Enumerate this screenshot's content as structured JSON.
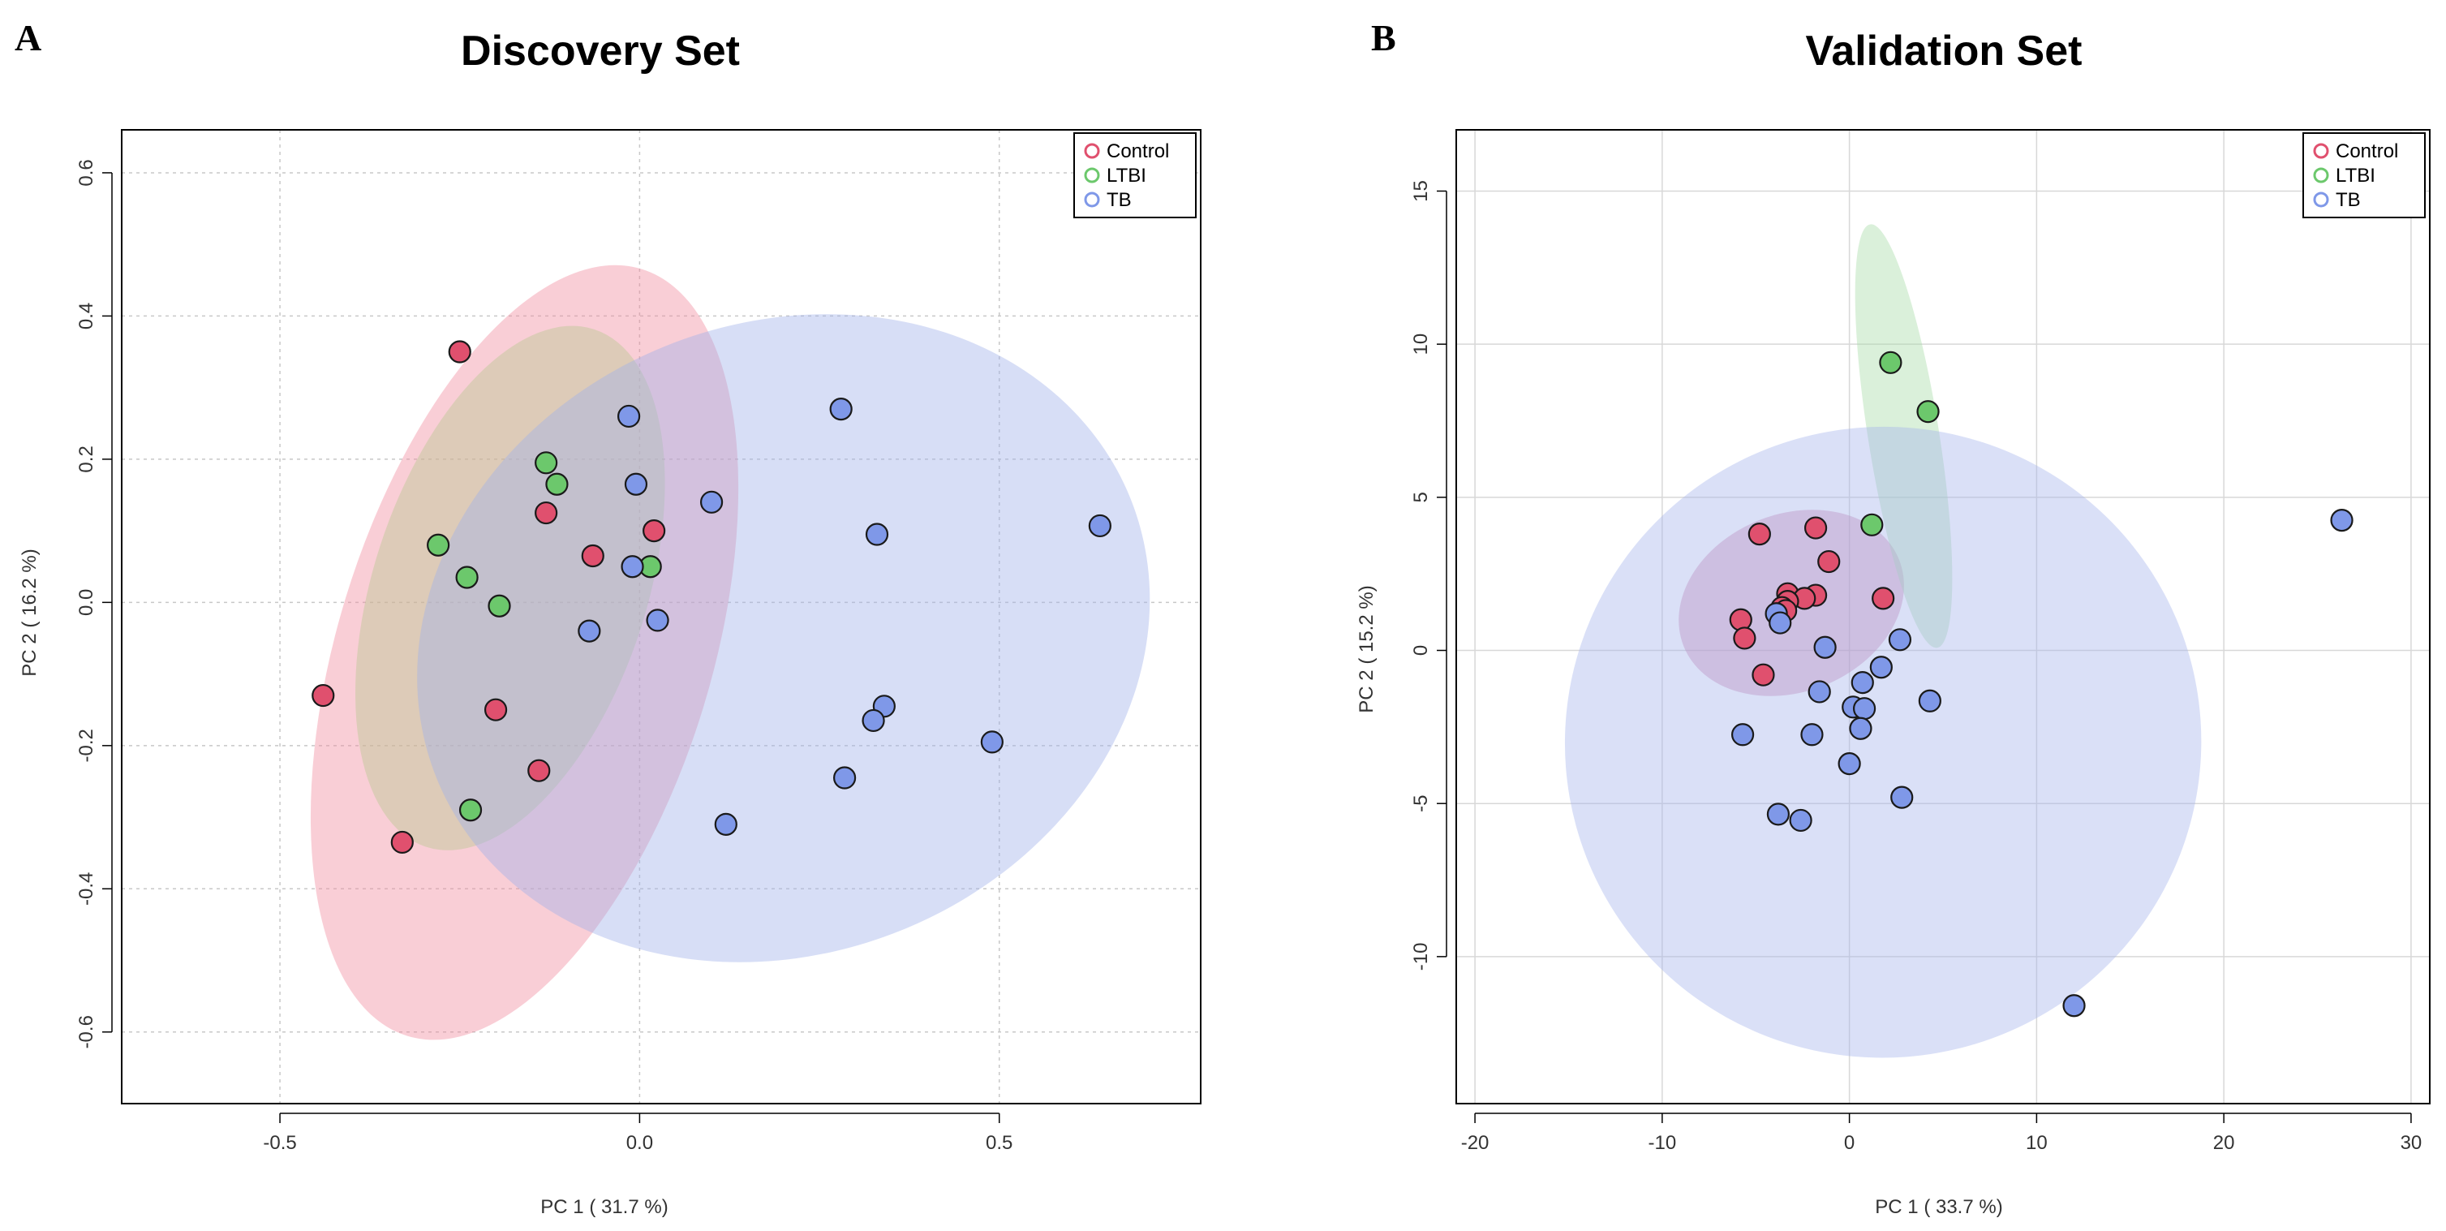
{
  "chart_data": [
    {
      "panel": "A",
      "type": "scatter",
      "title": "Discovery Set",
      "xlabel": "PC 1 ( 31.7 %)",
      "ylabel": "PC 2 ( 16.2 %)",
      "xlim": [
        -0.72,
        0.78
      ],
      "ylim": [
        -0.7,
        0.66
      ],
      "xticks": [
        -0.5,
        0.0,
        0.5
      ],
      "xtick_labels": [
        "-0.5",
        "0.0",
        "0.5"
      ],
      "yticks": [
        -0.6,
        -0.4,
        -0.2,
        0.0,
        0.2,
        0.4,
        0.6
      ],
      "ytick_labels": [
        "-0.6",
        "-0.4",
        "-0.2",
        "0.0",
        "0.2",
        "0.4",
        "0.6"
      ],
      "grid": true,
      "grid_style": "dotted",
      "legend_position": "top-right",
      "series": [
        {
          "name": "Control",
          "color": "#e0506e",
          "ellipse": {
            "cx": -0.16,
            "cy": -0.07,
            "rx": 0.26,
            "ry": 0.56,
            "angle": -17,
            "color": "#f08a9e"
          },
          "points": [
            [
              -0.25,
              0.35
            ],
            [
              -0.13,
              0.125
            ],
            [
              0.02,
              0.1
            ],
            [
              -0.065,
              0.065
            ],
            [
              -0.44,
              -0.13
            ],
            [
              -0.2,
              -0.15
            ],
            [
              -0.14,
              -0.235
            ],
            [
              -0.33,
              -0.335
            ]
          ]
        },
        {
          "name": "LTBI",
          "color": "#6cc86c",
          "ellipse": {
            "cx": -0.18,
            "cy": 0.02,
            "rx": 0.19,
            "ry": 0.38,
            "angle": -18,
            "color": "#b8c890"
          },
          "points": [
            [
              -0.13,
              0.195
            ],
            [
              -0.115,
              0.165
            ],
            [
              -0.28,
              0.08
            ],
            [
              -0.24,
              0.035
            ],
            [
              -0.195,
              -0.005
            ],
            [
              0.015,
              0.05
            ],
            [
              -0.235,
              -0.29
            ]
          ]
        },
        {
          "name": "TB",
          "color": "#7f98e8",
          "ellipse": {
            "cx": 0.2,
            "cy": -0.05,
            "rx": 0.52,
            "ry": 0.44,
            "angle": 22,
            "color": "#9fb0ea"
          },
          "points": [
            [
              -0.015,
              0.26
            ],
            [
              0.28,
              0.27
            ],
            [
              -0.005,
              0.165
            ],
            [
              0.1,
              0.14
            ],
            [
              0.64,
              0.107
            ],
            [
              0.33,
              0.095
            ],
            [
              -0.01,
              0.05
            ],
            [
              0.025,
              -0.025
            ],
            [
              -0.07,
              -0.04
            ],
            [
              0.34,
              -0.145
            ],
            [
              0.325,
              -0.165
            ],
            [
              0.49,
              -0.195
            ],
            [
              0.285,
              -0.245
            ],
            [
              0.12,
              -0.31
            ]
          ]
        }
      ]
    },
    {
      "panel": "B",
      "type": "scatter",
      "title": "Validation Set",
      "xlabel": "PC 1 ( 33.7 %)",
      "ylabel": "PC 2 ( 15.2 %)",
      "xlim": [
        -21,
        31
      ],
      "ylim": [
        -14.8,
        17
      ],
      "xticks": [
        -20,
        -10,
        0,
        10,
        20,
        30
      ],
      "xtick_labels": [
        "-20",
        "-10",
        "0",
        "10",
        "20",
        "30"
      ],
      "yticks": [
        -10,
        -5,
        0,
        5,
        10,
        15
      ],
      "ytick_labels": [
        "-10",
        "-5",
        "0",
        "5",
        "10",
        "15"
      ],
      "grid": true,
      "grid_style": "solid",
      "legend_position": "top-right",
      "series": [
        {
          "name": "Control",
          "color": "#e0506e",
          "ellipse": {
            "cx": -3.1,
            "cy": 1.55,
            "rx": 6.2,
            "ry": 2.9,
            "angle": 22,
            "color": "#c87aa6"
          },
          "points": [
            [
              -4.8,
              3.8
            ],
            [
              -1.8,
              4.0
            ],
            [
              -1.1,
              2.9
            ],
            [
              -3.3,
              1.85
            ],
            [
              -1.8,
              1.8
            ],
            [
              -2.4,
              1.7
            ],
            [
              -3.3,
              1.6
            ],
            [
              -3.6,
              1.4
            ],
            [
              -3.4,
              1.3
            ],
            [
              1.8,
              1.7
            ],
            [
              -5.8,
              1.0
            ],
            [
              -5.6,
              0.4
            ],
            [
              -4.6,
              -0.8
            ]
          ]
        },
        {
          "name": "LTBI",
          "color": "#6cc86c",
          "ellipse": {
            "cx": 2.9,
            "cy": 7.0,
            "rx": 1.9,
            "ry": 7.0,
            "angle": 9,
            "color": "#a6dca6"
          },
          "points": [
            [
              2.2,
              9.4
            ],
            [
              4.2,
              7.8
            ],
            [
              1.2,
              4.1
            ]
          ]
        },
        {
          "name": "TB",
          "color": "#7f98e8",
          "ellipse": {
            "cx": 1.8,
            "cy": -3.0,
            "rx": 17.0,
            "ry": 10.3,
            "angle": 10,
            "color": "#a6b4ec"
          },
          "points": [
            [
              26.3,
              4.25
            ],
            [
              -3.9,
              1.2
            ],
            [
              -3.7,
              0.9
            ],
            [
              -1.3,
              0.1
            ],
            [
              2.7,
              0.35
            ],
            [
              1.7,
              -0.55
            ],
            [
              -1.6,
              -1.35
            ],
            [
              0.7,
              -1.05
            ],
            [
              4.3,
              -1.65
            ],
            [
              0.2,
              -1.85
            ],
            [
              0.8,
              -1.9
            ],
            [
              0.6,
              -2.55
            ],
            [
              -5.7,
              -2.75
            ],
            [
              -2.0,
              -2.75
            ],
            [
              0.0,
              -3.7
            ],
            [
              2.8,
              -4.8
            ],
            [
              -3.8,
              -5.35
            ],
            [
              -2.6,
              -5.55
            ],
            [
              12.0,
              -11.6
            ]
          ]
        }
      ]
    }
  ]
}
